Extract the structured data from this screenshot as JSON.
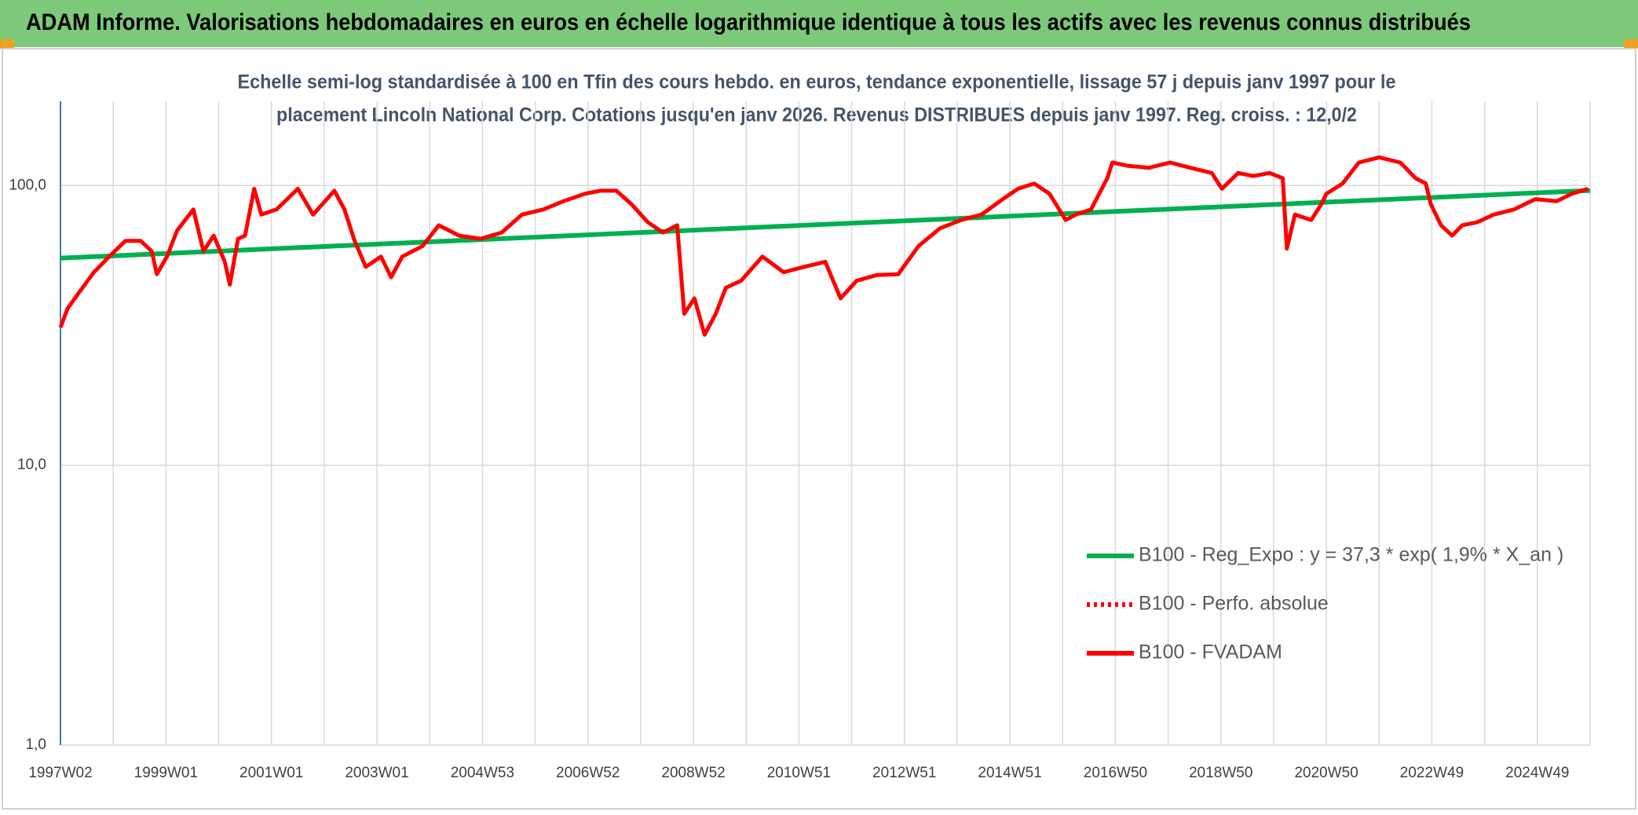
{
  "header": {
    "title": "ADAM Informe. Valorisations hebdomadaires en euros en échelle logarithmique identique à tous les actifs avec les revenus connus distribués"
  },
  "chart_data": {
    "type": "line",
    "subtitle": [
      "Echelle semi-log standardisée à 100 en Tfin des cours hebdo. en euros, tendance exponentielle, lissage 57 j depuis janv 1997 pour le",
      "placement Lincoln National Corp. Cotations jusqu'en janv 2026. Revenus DISTRIBUES depuis janv 1997. Reg. croiss. : 12,0/2"
    ],
    "log_scale_y": true,
    "grid": true,
    "legend": "right",
    "xlim": [
      0,
      1508
    ],
    "ylim": [
      1,
      200
    ],
    "yticks": [
      {
        "value": 1,
        "label": "1,0"
      },
      {
        "value": 10,
        "label": "10,0"
      },
      {
        "value": 100,
        "label": "100,0"
      }
    ],
    "xticks": [
      {
        "value": 0,
        "label": "1997W02"
      },
      {
        "value": 52,
        "label": null
      },
      {
        "value": 104,
        "label": "1999W01"
      },
      {
        "value": 156,
        "label": null
      },
      {
        "value": 208,
        "label": "2001W01"
      },
      {
        "value": 260,
        "label": null
      },
      {
        "value": 312,
        "label": "2003W01"
      },
      {
        "value": 364,
        "label": null
      },
      {
        "value": 416,
        "label": "2004W53"
      },
      {
        "value": 468,
        "label": null
      },
      {
        "value": 520,
        "label": "2006W52"
      },
      {
        "value": 572,
        "label": null
      },
      {
        "value": 624,
        "label": "2008W52"
      },
      {
        "value": 676,
        "label": null
      },
      {
        "value": 728,
        "label": "2010W51"
      },
      {
        "value": 780,
        "label": null
      },
      {
        "value": 832,
        "label": "2012W51"
      },
      {
        "value": 884,
        "label": null
      },
      {
        "value": 936,
        "label": "2014W51"
      },
      {
        "value": 988,
        "label": null
      },
      {
        "value": 1040,
        "label": "2016W50"
      },
      {
        "value": 1092,
        "label": null
      },
      {
        "value": 1144,
        "label": "2018W50"
      },
      {
        "value": 1196,
        "label": null
      },
      {
        "value": 1248,
        "label": "2020W50"
      },
      {
        "value": 1300,
        "label": null
      },
      {
        "value": 1352,
        "label": "2022W49"
      },
      {
        "value": 1404,
        "label": null
      },
      {
        "value": 1456,
        "label": "2024W49"
      },
      {
        "value": 1508,
        "label": null
      }
    ],
    "series": [
      {
        "name": "B100 - Reg_Expo : y = 37,3 * exp( 1,9% *  X_an )",
        "color": "#00b050",
        "style": "solid",
        "x": [
          0,
          1508
        ],
        "values": [
          55,
          96
        ]
      },
      {
        "name": "B100 - Perfo. absolue",
        "color": "#ff0000",
        "style": "dotted",
        "x": [],
        "values": []
      },
      {
        "name": "B100 - FVADAM",
        "color": "#ff0000",
        "style": "solid",
        "x": [
          0,
          7,
          18,
          33,
          48,
          64,
          79,
          90,
          95,
          105,
          115,
          131,
          141,
          151,
          162,
          167,
          175,
          182,
          191,
          198,
          213,
          234,
          249,
          270,
          280,
          290,
          301,
          316,
          326,
          337,
          357,
          373,
          393,
          414,
          435,
          455,
          476,
          496,
          517,
          532,
          548,
          563,
          579,
          594,
          608,
          615,
          625,
          635,
          646,
          656,
          671,
          692,
          713,
          733,
          754,
          769,
          785,
          805,
          826,
          846,
          867,
          888,
          908,
          929,
          944,
          960,
          975,
          991,
          1001,
          1016,
          1032,
          1037,
          1052,
          1073,
          1094,
          1114,
          1135,
          1145,
          1161,
          1176,
          1192,
          1205,
          1209,
          1217,
          1233,
          1243,
          1248,
          1264,
          1280,
          1300,
          1321,
          1336,
          1346,
          1351,
          1361,
          1372,
          1382,
          1397,
          1413,
          1433,
          1454,
          1475,
          1490,
          1506
        ],
        "values": [
          31.1,
          36.3,
          41.3,
          49.0,
          55.7,
          63.4,
          63.4,
          58.2,
          48.2,
          55.7,
          69.1,
          82.1,
          58.2,
          66.2,
          53.4,
          44.2,
          64.5,
          66.2,
          97.4,
          78.7,
          82.1,
          97.4,
          78.7,
          95.8,
          82.1,
          63.4,
          51.2,
          55.7,
          47.0,
          55.7,
          60.8,
          72.1,
          66.2,
          64.5,
          67.9,
          78.7,
          82.1,
          87.9,
          93.4,
          95.8,
          95.8,
          85.7,
          74.0,
          67.9,
          72.1,
          34.8,
          39.5,
          29.3,
          34.8,
          43.1,
          45.7,
          55.7,
          49.0,
          51.2,
          53.4,
          39.5,
          45.7,
          47.9,
          48.2,
          60.8,
          70.3,
          75.3,
          78.7,
          89.4,
          97.4,
          101.7,
          93.4,
          75.3,
          78.7,
          82.1,
          106.2,
          120.8,
          117.7,
          115.7,
          120.8,
          115.7,
          110.9,
          97.4,
          110.9,
          108.1,
          110.9,
          106.2,
          59.5,
          78.7,
          75.3,
          85.7,
          93.4,
          101.7,
          120.8,
          126.1,
          120.8,
          106.2,
          101.7,
          85.7,
          72.1,
          66.2,
          72.1,
          74.0,
          78.7,
          82.1,
          89.4,
          87.9,
          93.4,
          97.4
        ]
      }
    ]
  }
}
